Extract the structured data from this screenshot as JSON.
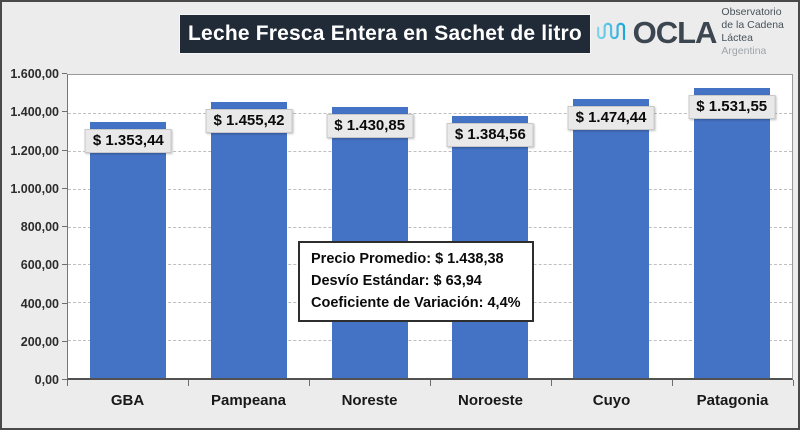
{
  "header": {
    "title": "Leche Fresca Entera en Sachet de litro",
    "logo": {
      "brand": "OCLA",
      "org_line1": "Observatorio",
      "org_line2": "de la Cadena Láctea",
      "org_line3": "Argentina"
    }
  },
  "chart_data": {
    "type": "bar",
    "title": "Leche Fresca Entera en Sachet de litro",
    "categories": [
      "GBA",
      "Pampeana",
      "Noreste",
      "Noroeste",
      "Cuyo",
      "Patagonia"
    ],
    "values": [
      1353.44,
      1455.42,
      1430.85,
      1384.56,
      1474.44,
      1531.55
    ],
    "value_labels": [
      "$ 1.353,44",
      "$ 1.455,42",
      "$ 1.430,85",
      "$ 1.384,56",
      "$ 1.474,44",
      "$ 1.531,55"
    ],
    "xlabel": "",
    "ylabel": "",
    "ylim": [
      0,
      1600
    ],
    "ytick_step": 200,
    "ytick_labels": [
      "0,00",
      "200,00",
      "400,00",
      "600,00",
      "800,00",
      "1.000,00",
      "1.200,00",
      "1.400,00",
      "1.600,00"
    ],
    "grid": "horizontal-dashed",
    "legend_position": "none",
    "annotation_lines": [
      "Precio Promedio: $ 1.438,38",
      "Desvío Estándar: $ 63,94",
      "Coeficiente de Variación: 4,4%"
    ]
  },
  "colors": {
    "background": "#ECECEC",
    "title_bg": "#212B38",
    "bar": "#4472C4",
    "logo_accent_light": "#7FD4EC",
    "logo_accent_dark": "#1BA7DC",
    "label_box_bg": "#E9E9E9"
  }
}
